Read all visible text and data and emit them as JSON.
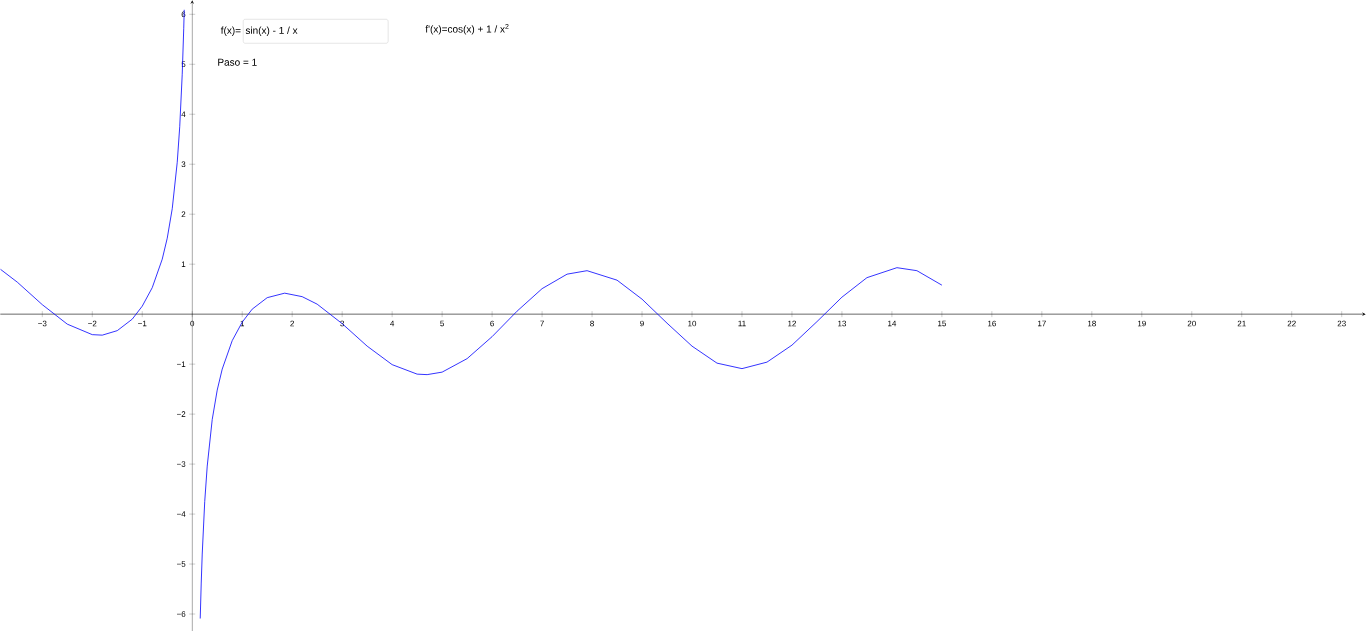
{
  "chart_data": {
    "type": "line",
    "annotations": [
      "f(x)=",
      "sin(x) - 1 / x",
      "f'(x)=cos(x) + 1 / x$^{2}$",
      "Paso = 1"
    ],
    "x": [
      -3.84,
      -3.5,
      -3,
      -2.5,
      -2,
      -1.8,
      -1.5,
      -1.2,
      -1,
      -0.8,
      -0.6,
      -0.5,
      -0.4,
      -0.3,
      -0.25,
      -0.2,
      -0.17,
      -0.16,
      0,
      0.16,
      0.18,
      0.2,
      0.25,
      0.3,
      0.4,
      0.5,
      0.6,
      0.8,
      1,
      1.2,
      1.5,
      1.85,
      2.2,
      2.5,
      3,
      3.5,
      4,
      4.5,
      4.7,
      5,
      5.5,
      6,
      6.5,
      7,
      7.5,
      7.9,
      8.5,
      9,
      9.5,
      10,
      10.5,
      11,
      11.5,
      12,
      12.5,
      13,
      13.5,
      14.1,
      14.5,
      15
    ],
    "series": [
      {
        "color": "#0000ff",
        "values": [
          0.9,
          0.64,
          0.19,
          -0.2,
          -0.41,
          -0.42,
          -0.33,
          -0.1,
          0.16,
          0.53,
          1.1,
          1.52,
          2.11,
          3.04,
          3.75,
          4.8,
          5.71,
          6.09,
          null,
          -6.09,
          -5.38,
          -4.8,
          -3.75,
          -3.04,
          -2.11,
          -1.52,
          -1.1,
          -0.53,
          -0.16,
          0.1,
          0.33,
          0.42,
          0.35,
          0.2,
          -0.19,
          -0.64,
          -1.01,
          -1.2,
          -1.21,
          -1.16,
          -0.89,
          -0.45,
          0.06,
          0.51,
          0.8,
          0.87,
          0.68,
          0.3,
          -0.18,
          -0.64,
          -0.98,
          -1.09,
          -0.96,
          -0.62,
          -0.15,
          0.34,
          0.73,
          0.93,
          0.87,
          0.58
        ]
      }
    ],
    "xlim": [
      -3.84,
      23.48
    ],
    "ylim": [
      -6.34,
      6.28
    ],
    "xticks": [
      {
        "value": -3,
        "label": "−3"
      },
      {
        "value": -2,
        "label": "−2"
      },
      {
        "value": -1,
        "label": "−1"
      },
      0,
      1,
      2,
      3,
      4,
      5,
      6,
      7,
      8,
      9,
      10,
      11,
      12,
      13,
      14,
      15,
      16,
      17,
      18,
      19,
      20,
      21,
      22,
      23
    ],
    "yticks": [
      {
        "value": -6,
        "label": "−6"
      },
      {
        "value": -5,
        "label": "−5"
      },
      {
        "value": -4,
        "label": "−4"
      },
      {
        "value": -3,
        "label": "−3"
      },
      {
        "value": -2,
        "label": "−2"
      },
      {
        "value": -1,
        "label": "−1"
      },
      1,
      2,
      3,
      4,
      5,
      6
    ]
  }
}
